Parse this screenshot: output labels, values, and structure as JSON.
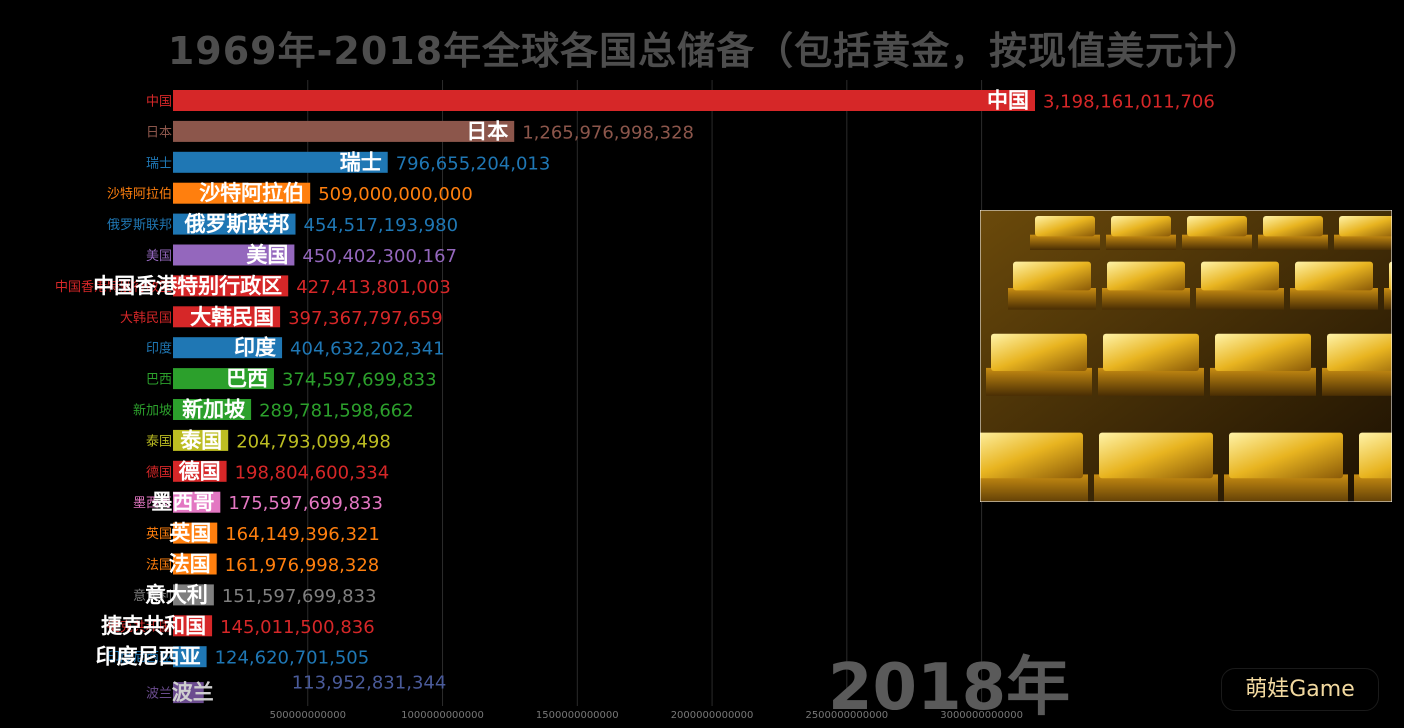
{
  "title": "1969年-2018年全球各国总储备（包括黄金，按现值美元计）",
  "year": "2018年",
  "watermark": "萌娃Game",
  "image": {
    "subject": "gold-bars-photo"
  },
  "chart_data": {
    "type": "bar",
    "orientation": "horizontal",
    "title": "1969年-2018年全球各国总储备（包括黄金，按现值美元计）",
    "categories": [
      "中国",
      "日本",
      "瑞士",
      "沙特阿拉伯",
      "俄罗斯联邦",
      "美国",
      "中国香港特别行政区",
      "大韩民国",
      "印度",
      "巴西",
      "新加坡",
      "泰国",
      "德国",
      "墨西哥",
      "英国",
      "法国",
      "意大利",
      "捷克共和国",
      "印度尼西亚",
      "波兰"
    ],
    "values": [
      3198161011706,
      1265976998328,
      796655204013,
      509000000000,
      454517193980,
      450402300167,
      427413801003,
      397367797659,
      404632202341,
      374597699833,
      289781598662,
      204793099498,
      198804600334,
      175597699833,
      164149396321,
      161976998328,
      151597699833,
      145011500836,
      124620701505,
      113952831344
    ],
    "value_labels": [
      "3,198,161,011,706",
      "1,265,976,998,328",
      "796,655,204,013",
      "509,000,000,000",
      "454,517,193,980",
      "450,402,300,167",
      "427,413,801,003",
      "397,367,797,659",
      "404,632,202,341",
      "374,597,699,833",
      "289,781,598,662",
      "204,793,099,498",
      "198,804,600,334",
      "175,597,699,833",
      "164,149,396,321",
      "161,976,998,328",
      "151,597,699,833",
      "145,011,500,836",
      "124,620,701,505",
      "113,952,831,344"
    ],
    "colors": [
      "#d62728",
      "#8c564b",
      "#1f77b4",
      "#ff7f0e",
      "#1f77b4",
      "#9467bd",
      "#d62728",
      "#d62728",
      "#1f77b4",
      "#2ca02c",
      "#2ca02c",
      "#bcbd22",
      "#d62728",
      "#e377c2",
      "#ff7f0e",
      "#ff7f0e",
      "#7f7f7f",
      "#d62728",
      "#1f77b4",
      "#6b4c8f"
    ],
    "x_ticks": [
      500000000000,
      1000000000000,
      1500000000000,
      2000000000000,
      2500000000000,
      3000000000000
    ],
    "x_tick_labels": [
      "500000000000",
      "1000000000000",
      "1500000000000",
      "2000000000000",
      "2500000000000",
      "3000000000000"
    ],
    "xlim": [
      0,
      3198161011706
    ],
    "grid": true,
    "xlabel": "",
    "ylabel": ""
  }
}
